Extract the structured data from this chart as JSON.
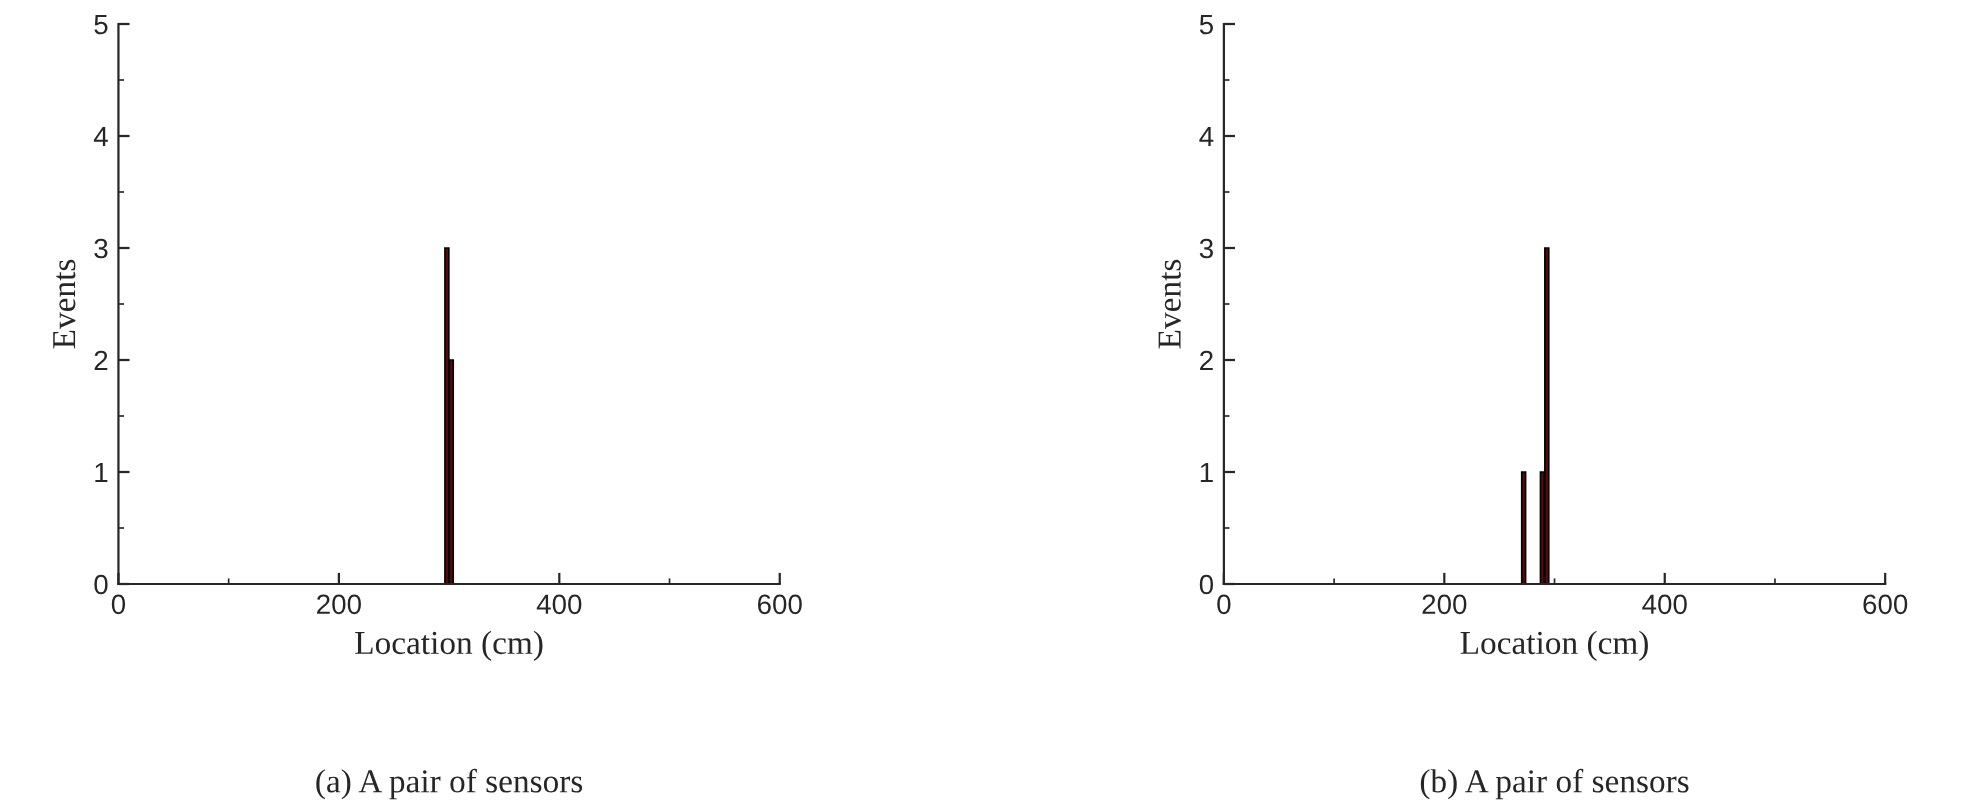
{
  "chart_data": [
    {
      "type": "bar",
      "title": "(a) A pair of sensors",
      "xlabel": "Location (cm)",
      "ylabel": "Events",
      "x": [
        298,
        302
      ],
      "values": [
        3,
        2
      ],
      "color": "#5a0a0a",
      "xlim": [
        0,
        600
      ],
      "xticks": [
        0,
        200,
        400,
        600
      ],
      "ylim": [
        0,
        5
      ],
      "yticks": [
        0,
        1,
        2,
        3,
        4,
        5
      ],
      "grid": false,
      "legend": false
    },
    {
      "type": "bar",
      "title": "(b) A pair of sensors",
      "xlabel": "Location (cm)",
      "ylabel": "Events",
      "x": [
        272,
        289,
        293
      ],
      "values": [
        1,
        1,
        3
      ],
      "color": "#5a0a0a",
      "xlim": [
        0,
        600
      ],
      "xticks": [
        0,
        200,
        400,
        600
      ],
      "ylim": [
        0,
        5
      ],
      "yticks": [
        0,
        1,
        2,
        3,
        4,
        5
      ],
      "grid": false,
      "legend": false
    }
  ]
}
